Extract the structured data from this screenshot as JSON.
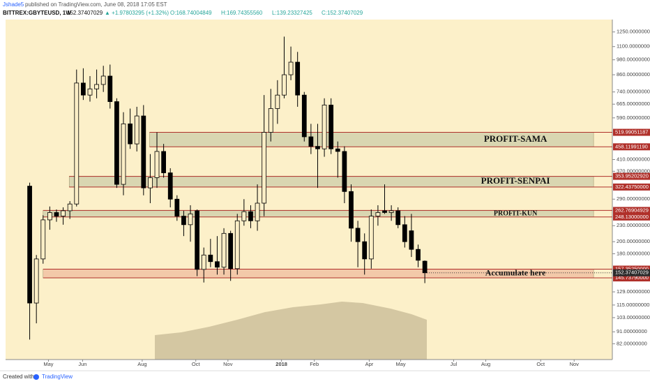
{
  "header": {
    "author": "Jshade5",
    "published": "published on TradingView.com, June 08, 2018 17:05 EST",
    "symbol": "BITTREX:GBYTEUSD, 1W",
    "price": "152.37407029",
    "change": "▲ +1.97803295 (+1.32%)",
    "open": "O:168.74004849",
    "high": "H:169.74355560",
    "low": "L:139.23327425",
    "close": "C:152.37407029"
  },
  "footer": {
    "created": "Created with",
    "brand": "TradingView"
  },
  "chart_data": {
    "type": "candlestick",
    "log_scale": true,
    "grid": false,
    "up_color": "#fbeec6",
    "down_color": "#000000",
    "xlim": [
      -3.6,
      87.0
    ],
    "xticks": [
      {
        "value": 2.8,
        "label": "May"
      },
      {
        "value": 7.9,
        "label": "Jun"
      },
      {
        "value": 16.8,
        "label": "Aug"
      },
      {
        "value": 24.8,
        "label": "Oct"
      },
      {
        "value": 29.6,
        "label": "Nov"
      },
      {
        "value": 37.6,
        "label": "2018"
      },
      {
        "value": 42.5,
        "label": "Feb"
      },
      {
        "value": 50.7,
        "label": "Apr"
      },
      {
        "value": 55.4,
        "label": "May"
      },
      {
        "value": 63.3,
        "label": "Jul"
      },
      {
        "value": 68.1,
        "label": "Aug"
      },
      {
        "value": 76.3,
        "label": "Oct"
      },
      {
        "value": 81.3,
        "label": "Nov"
      }
    ],
    "ylim": [
      71.4,
      1393
    ],
    "yticks": [
      {
        "value": 1250,
        "label": "1250.00000000"
      },
      {
        "value": 1100,
        "label": "1100.00000000"
      },
      {
        "value": 980,
        "label": "980.00000000"
      },
      {
        "value": 860,
        "label": "860.00000000"
      },
      {
        "value": 740,
        "label": "740.00000000"
      },
      {
        "value": 665,
        "label": "665.00000000"
      },
      {
        "value": 590,
        "label": "590.00000000"
      },
      {
        "value": 410,
        "label": "410.00000000"
      },
      {
        "value": 370,
        "label": "370.00000000"
      },
      {
        "value": 290,
        "label": "290.00000000"
      },
      {
        "value": 230,
        "label": "230.00000000"
      },
      {
        "value": 200,
        "label": "200.00000000"
      },
      {
        "value": 180,
        "label": "180.00000000"
      },
      {
        "value": 129,
        "label": "129.00000000"
      },
      {
        "value": 115,
        "label": "115.00000000"
      },
      {
        "value": 103,
        "label": "103.00000000"
      },
      {
        "value": 91,
        "label": "91.00000000"
      },
      {
        "value": 82,
        "label": "82.00000000"
      }
    ],
    "zones": [
      {
        "label": "PROFIT-SAMA",
        "color": "#d9d6b1",
        "start": 17.9,
        "end": 84.2,
        "top": {
          "value": 519.99051187,
          "label": "519.99051187"
        },
        "bottom": {
          "value": 458.1199119,
          "label": "458.11991190"
        }
      },
      {
        "label": "PROFIT-SENPAI",
        "color": "#d9d6b1",
        "start": 5.9,
        "end": 84.2,
        "top": {
          "value": 353.9520292,
          "label": "353.95202920"
        },
        "bottom": {
          "value": 322.4375,
          "label": "322.43750000"
        }
      },
      {
        "label": "PROFIT-KUN",
        "color": "#d9d6b1",
        "start": 2.0,
        "end": 84.2,
        "top": {
          "value": 262.76904929,
          "label": "262.76904929"
        },
        "bottom": {
          "value": 248.13,
          "label": "248.13000000"
        }
      },
      {
        "label": "Accumulate here",
        "color": "#f3c9a9",
        "start": 2.0,
        "end": 84.2,
        "top": {
          "value": 157.3525,
          "label": "157.35250000"
        },
        "bottom": {
          "value": 145.7379,
          "label": "145.73790000"
        }
      }
    ],
    "candles": [
      {
        "open": 325,
        "high": 335,
        "low": 85,
        "close": 117
      },
      {
        "open": 117,
        "high": 178,
        "low": 98,
        "close": 172
      },
      {
        "open": 172,
        "high": 252,
        "low": 165,
        "close": 242
      },
      {
        "open": 242,
        "high": 272,
        "low": 222,
        "close": 258
      },
      {
        "open": 258,
        "high": 265,
        "low": 238,
        "close": 250
      },
      {
        "open": 250,
        "high": 270,
        "low": 232,
        "close": 262
      },
      {
        "open": 262,
        "high": 285,
        "low": 244,
        "close": 278
      },
      {
        "open": 278,
        "high": 900,
        "low": 272,
        "close": 800
      },
      {
        "open": 800,
        "high": 910,
        "low": 690,
        "close": 720
      },
      {
        "open": 720,
        "high": 850,
        "low": 680,
        "close": 760
      },
      {
        "open": 760,
        "high": 900,
        "low": 700,
        "close": 790
      },
      {
        "open": 790,
        "high": 930,
        "low": 740,
        "close": 850
      },
      {
        "open": 850,
        "high": 940,
        "low": 640,
        "close": 680
      },
      {
        "open": 680,
        "high": 700,
        "low": 320,
        "close": 330
      },
      {
        "open": 330,
        "high": 620,
        "low": 300,
        "close": 560
      },
      {
        "open": 560,
        "high": 640,
        "low": 450,
        "close": 470
      },
      {
        "open": 470,
        "high": 650,
        "low": 440,
        "close": 600
      },
      {
        "open": 600,
        "high": 660,
        "low": 300,
        "close": 320
      },
      {
        "open": 320,
        "high": 430,
        "low": 280,
        "close": 350
      },
      {
        "open": 350,
        "high": 520,
        "low": 320,
        "close": 440
      },
      {
        "open": 440,
        "high": 470,
        "low": 350,
        "close": 365
      },
      {
        "open": 365,
        "high": 380,
        "low": 270,
        "close": 290
      },
      {
        "open": 290,
        "high": 300,
        "low": 240,
        "close": 250
      },
      {
        "open": 250,
        "high": 262,
        "low": 210,
        "close": 232
      },
      {
        "open": 232,
        "high": 275,
        "low": 200,
        "close": 255
      },
      {
        "open": 262,
        "high": 265,
        "low": 148,
        "close": 157
      },
      {
        "open": 157,
        "high": 190,
        "low": 140,
        "close": 178
      },
      {
        "open": 178,
        "high": 205,
        "low": 160,
        "close": 168
      },
      {
        "open": 168,
        "high": 210,
        "low": 150,
        "close": 160
      },
      {
        "open": 160,
        "high": 225,
        "low": 150,
        "close": 215
      },
      {
        "open": 215,
        "high": 220,
        "low": 142,
        "close": 158
      },
      {
        "open": 158,
        "high": 255,
        "low": 150,
        "close": 240
      },
      {
        "open": 240,
        "high": 290,
        "low": 230,
        "close": 260
      },
      {
        "open": 260,
        "high": 275,
        "low": 225,
        "close": 240
      },
      {
        "open": 240,
        "high": 330,
        "low": 220,
        "close": 280
      },
      {
        "open": 280,
        "high": 720,
        "low": 250,
        "close": 520
      },
      {
        "open": 520,
        "high": 760,
        "low": 480,
        "close": 640
      },
      {
        "open": 640,
        "high": 820,
        "low": 560,
        "close": 720
      },
      {
        "open": 720,
        "high": 1200,
        "low": 700,
        "close": 860
      },
      {
        "open": 860,
        "high": 1100,
        "low": 820,
        "close": 960
      },
      {
        "open": 960,
        "high": 1050,
        "low": 650,
        "close": 720
      },
      {
        "open": 720,
        "high": 740,
        "low": 480,
        "close": 500
      },
      {
        "open": 500,
        "high": 560,
        "low": 430,
        "close": 460
      },
      {
        "open": 460,
        "high": 560,
        "low": 320,
        "close": 450
      },
      {
        "open": 450,
        "high": 700,
        "low": 420,
        "close": 660
      },
      {
        "open": 660,
        "high": 700,
        "low": 430,
        "close": 450
      },
      {
        "open": 450,
        "high": 480,
        "low": 350,
        "close": 440
      },
      {
        "open": 440,
        "high": 460,
        "low": 280,
        "close": 310
      },
      {
        "open": 310,
        "high": 330,
        "low": 200,
        "close": 225
      },
      {
        "open": 225,
        "high": 240,
        "low": 160,
        "close": 200
      },
      {
        "open": 200,
        "high": 215,
        "low": 150,
        "close": 172
      },
      {
        "open": 172,
        "high": 265,
        "low": 158,
        "close": 250
      },
      {
        "open": 250,
        "high": 275,
        "low": 230,
        "close": 258
      },
      {
        "open": 262,
        "high": 330,
        "low": 255,
        "close": 258
      },
      {
        "open": 258,
        "high": 275,
        "low": 240,
        "close": 262
      },
      {
        "open": 262,
        "high": 270,
        "low": 225,
        "close": 232
      },
      {
        "open": 232,
        "high": 250,
        "low": 190,
        "close": 200
      },
      {
        "open": 220,
        "high": 255,
        "low": 175,
        "close": 187
      },
      {
        "open": 187,
        "high": 195,
        "low": 160,
        "close": 170
      },
      {
        "open": 168.74004849,
        "high": 169.7435556,
        "low": 139.23327425,
        "close": 152.37407029
      }
    ]
  }
}
